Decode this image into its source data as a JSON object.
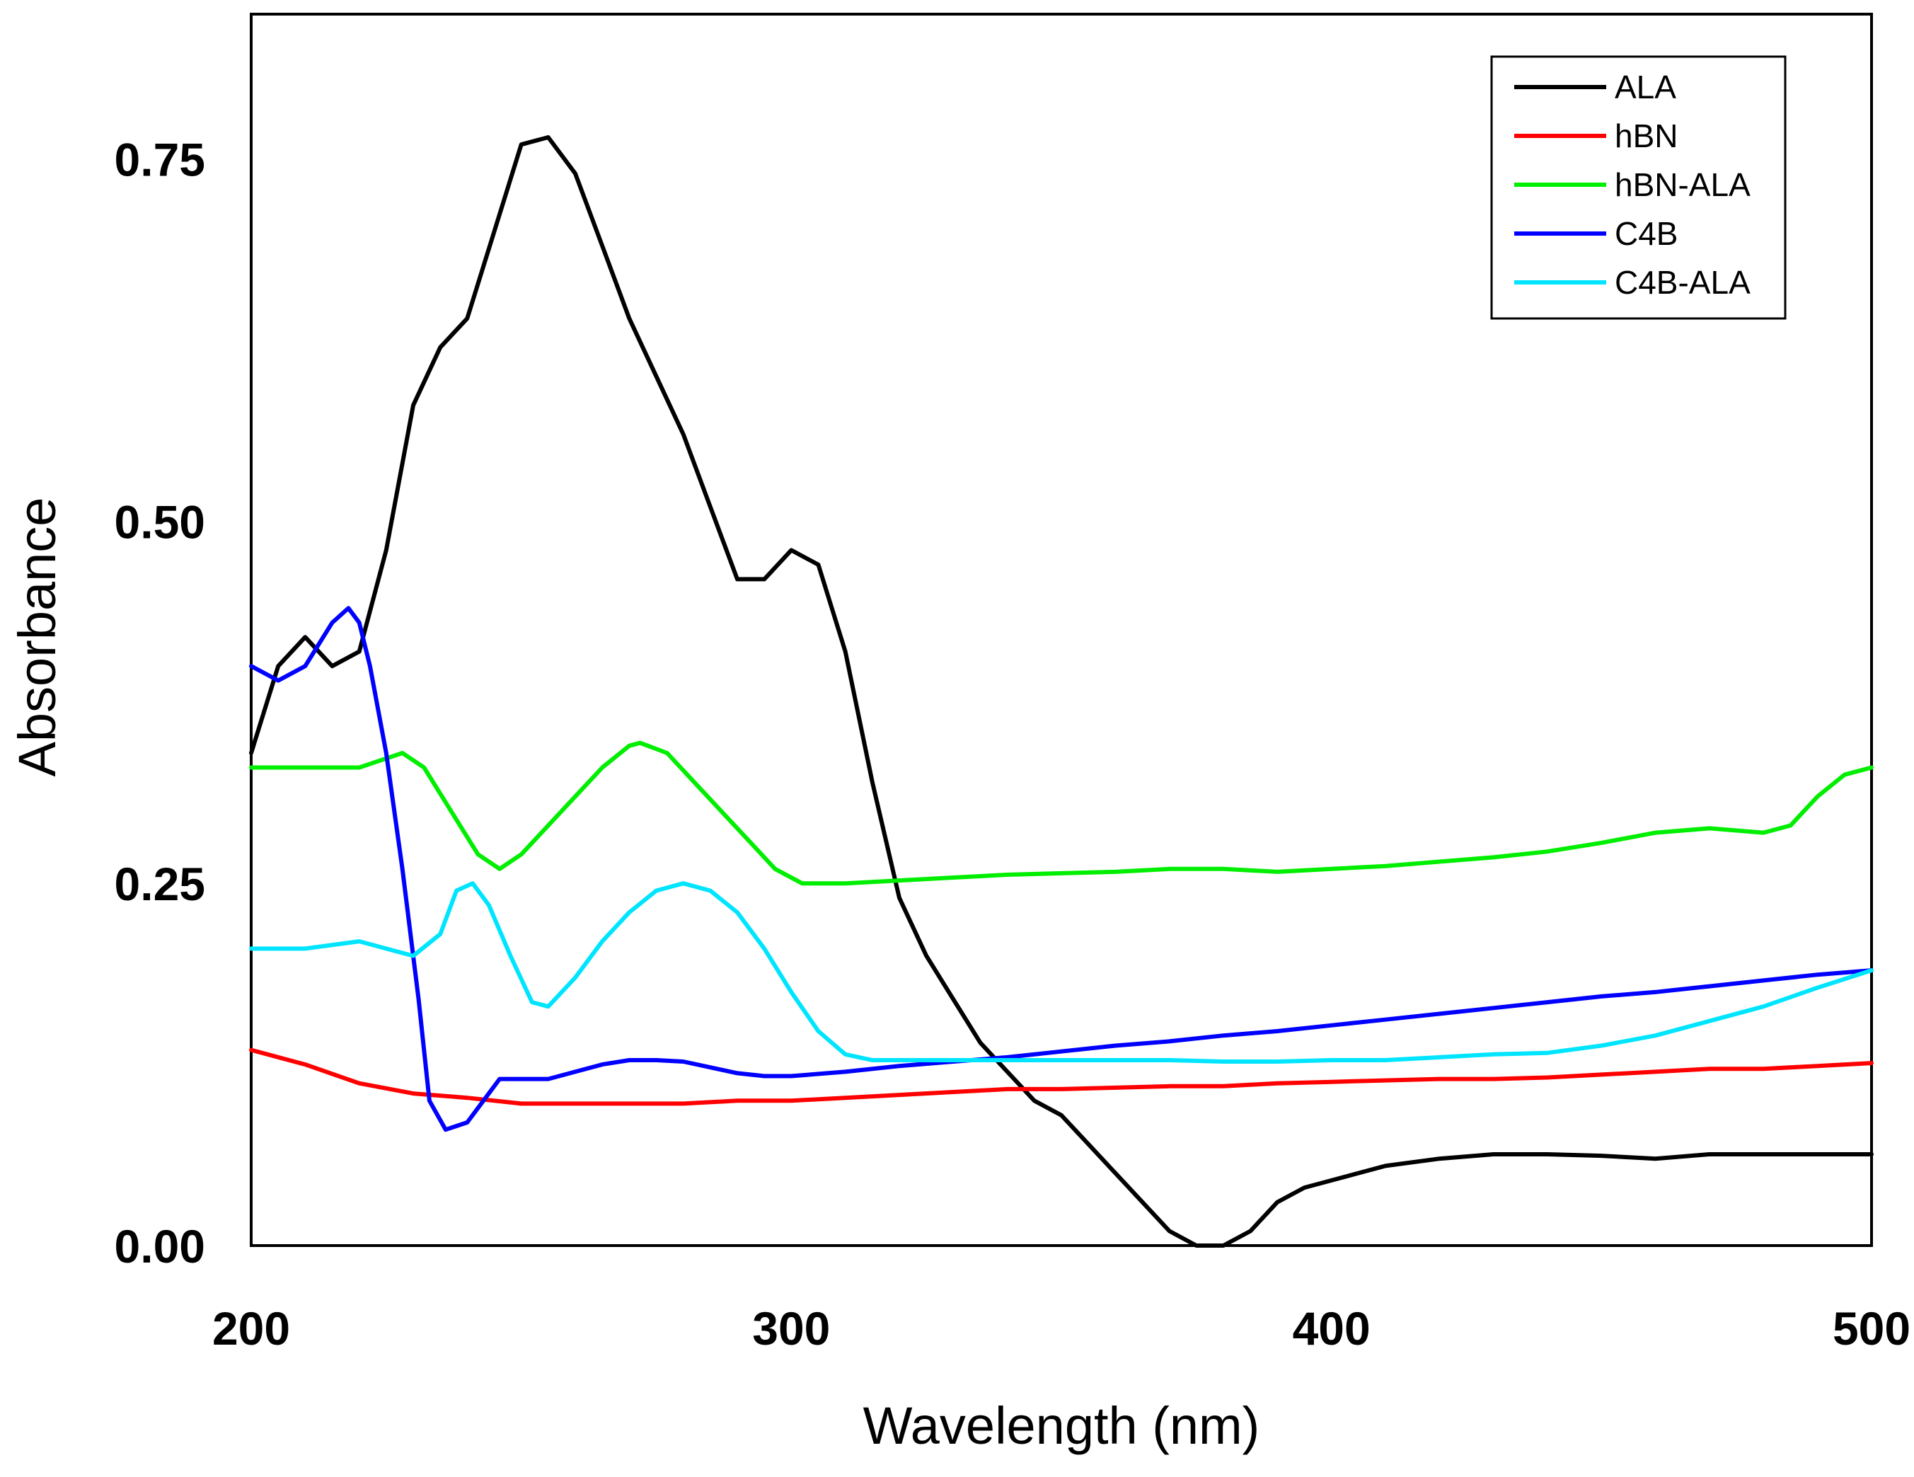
{
  "chart_data": {
    "type": "line",
    "title": "",
    "xlabel": "Wavelength (nm)",
    "ylabel": "Absorbance",
    "xlim": [
      200,
      500
    ],
    "ylim": [
      0,
      0.85
    ],
    "xticks": [
      200,
      300,
      400,
      500
    ],
    "xtick_labels": [
      "200",
      "300",
      "400",
      "500"
    ],
    "yticks": [
      0,
      0.25,
      0.5,
      0.75
    ],
    "ytick_labels": [
      "0.00",
      "0.25",
      "0.50",
      "0.75"
    ],
    "grid": false,
    "legend_position": "top-right",
    "series": [
      {
        "name": "ALA",
        "color": "#000000",
        "points": [
          [
            200,
            0.34
          ],
          [
            205,
            0.4
          ],
          [
            210,
            0.42
          ],
          [
            215,
            0.4
          ],
          [
            220,
            0.41
          ],
          [
            225,
            0.48
          ],
          [
            230,
            0.58
          ],
          [
            235,
            0.62
          ],
          [
            240,
            0.64
          ],
          [
            245,
            0.7
          ],
          [
            250,
            0.76
          ],
          [
            255,
            0.765
          ],
          [
            260,
            0.74
          ],
          [
            265,
            0.69
          ],
          [
            270,
            0.64
          ],
          [
            275,
            0.6
          ],
          [
            280,
            0.56
          ],
          [
            285,
            0.51
          ],
          [
            290,
            0.46
          ],
          [
            295,
            0.46
          ],
          [
            300,
            0.48
          ],
          [
            305,
            0.47
          ],
          [
            310,
            0.41
          ],
          [
            315,
            0.32
          ],
          [
            320,
            0.24
          ],
          [
            325,
            0.2
          ],
          [
            330,
            0.17
          ],
          [
            335,
            0.14
          ],
          [
            340,
            0.12
          ],
          [
            345,
            0.1
          ],
          [
            350,
            0.09
          ],
          [
            355,
            0.07
          ],
          [
            360,
            0.05
          ],
          [
            365,
            0.03
          ],
          [
            370,
            0.01
          ],
          [
            375,
            0.0
          ],
          [
            380,
            0.0
          ],
          [
            385,
            0.01
          ],
          [
            390,
            0.03
          ],
          [
            395,
            0.04
          ],
          [
            400,
            0.045
          ],
          [
            405,
            0.05
          ],
          [
            410,
            0.055
          ],
          [
            420,
            0.06
          ],
          [
            430,
            0.063
          ],
          [
            440,
            0.063
          ],
          [
            450,
            0.062
          ],
          [
            460,
            0.06
          ],
          [
            470,
            0.063
          ],
          [
            480,
            0.063
          ],
          [
            490,
            0.063
          ],
          [
            500,
            0.063
          ]
        ]
      },
      {
        "name": "hBN",
        "color": "#ff0000",
        "points": [
          [
            200,
            0.135
          ],
          [
            210,
            0.125
          ],
          [
            220,
            0.112
          ],
          [
            230,
            0.105
          ],
          [
            240,
            0.102
          ],
          [
            250,
            0.098
          ],
          [
            260,
            0.098
          ],
          [
            270,
            0.098
          ],
          [
            280,
            0.098
          ],
          [
            290,
            0.1
          ],
          [
            300,
            0.1
          ],
          [
            310,
            0.102
          ],
          [
            320,
            0.104
          ],
          [
            330,
            0.106
          ],
          [
            340,
            0.108
          ],
          [
            350,
            0.108
          ],
          [
            360,
            0.109
          ],
          [
            370,
            0.11
          ],
          [
            380,
            0.11
          ],
          [
            390,
            0.112
          ],
          [
            400,
            0.113
          ],
          [
            410,
            0.114
          ],
          [
            420,
            0.115
          ],
          [
            430,
            0.115
          ],
          [
            440,
            0.116
          ],
          [
            450,
            0.118
          ],
          [
            460,
            0.12
          ],
          [
            470,
            0.122
          ],
          [
            480,
            0.122
          ],
          [
            490,
            0.124
          ],
          [
            500,
            0.126
          ]
        ]
      },
      {
        "name": "hBN-ALA",
        "color": "#00ee00",
        "points": [
          [
            200,
            0.33
          ],
          [
            210,
            0.33
          ],
          [
            220,
            0.33
          ],
          [
            228,
            0.34
          ],
          [
            232,
            0.33
          ],
          [
            237,
            0.3
          ],
          [
            242,
            0.27
          ],
          [
            246,
            0.26
          ],
          [
            250,
            0.27
          ],
          [
            255,
            0.29
          ],
          [
            260,
            0.31
          ],
          [
            265,
            0.33
          ],
          [
            270,
            0.345
          ],
          [
            272,
            0.347
          ],
          [
            277,
            0.34
          ],
          [
            282,
            0.32
          ],
          [
            287,
            0.3
          ],
          [
            292,
            0.28
          ],
          [
            297,
            0.26
          ],
          [
            302,
            0.25
          ],
          [
            310,
            0.25
          ],
          [
            320,
            0.252
          ],
          [
            330,
            0.254
          ],
          [
            340,
            0.256
          ],
          [
            350,
            0.257
          ],
          [
            360,
            0.258
          ],
          [
            370,
            0.26
          ],
          [
            380,
            0.26
          ],
          [
            390,
            0.258
          ],
          [
            400,
            0.26
          ],
          [
            410,
            0.262
          ],
          [
            420,
            0.265
          ],
          [
            430,
            0.268
          ],
          [
            440,
            0.272
          ],
          [
            450,
            0.278
          ],
          [
            460,
            0.285
          ],
          [
            470,
            0.288
          ],
          [
            480,
            0.285
          ],
          [
            485,
            0.29
          ],
          [
            490,
            0.31
          ],
          [
            495,
            0.325
          ],
          [
            500,
            0.33
          ]
        ]
      },
      {
        "name": "C4B",
        "color": "#0000ff",
        "points": [
          [
            200,
            0.4
          ],
          [
            205,
            0.39
          ],
          [
            210,
            0.4
          ],
          [
            215,
            0.43
          ],
          [
            218,
            0.44
          ],
          [
            220,
            0.43
          ],
          [
            222,
            0.4
          ],
          [
            225,
            0.34
          ],
          [
            228,
            0.26
          ],
          [
            231,
            0.17
          ],
          [
            233,
            0.1
          ],
          [
            236,
            0.08
          ],
          [
            240,
            0.085
          ],
          [
            243,
            0.1
          ],
          [
            246,
            0.115
          ],
          [
            250,
            0.115
          ],
          [
            255,
            0.115
          ],
          [
            260,
            0.12
          ],
          [
            265,
            0.125
          ],
          [
            270,
            0.128
          ],
          [
            275,
            0.128
          ],
          [
            280,
            0.127
          ],
          [
            285,
            0.123
          ],
          [
            290,
            0.119
          ],
          [
            295,
            0.117
          ],
          [
            300,
            0.117
          ],
          [
            310,
            0.12
          ],
          [
            320,
            0.124
          ],
          [
            330,
            0.127
          ],
          [
            340,
            0.13
          ],
          [
            350,
            0.134
          ],
          [
            360,
            0.138
          ],
          [
            370,
            0.141
          ],
          [
            380,
            0.145
          ],
          [
            390,
            0.148
          ],
          [
            400,
            0.152
          ],
          [
            410,
            0.156
          ],
          [
            420,
            0.16
          ],
          [
            430,
            0.164
          ],
          [
            440,
            0.168
          ],
          [
            450,
            0.172
          ],
          [
            460,
            0.175
          ],
          [
            470,
            0.179
          ],
          [
            480,
            0.183
          ],
          [
            490,
            0.187
          ],
          [
            500,
            0.19
          ]
        ]
      },
      {
        "name": "C4B-ALA",
        "color": "#00e5ff",
        "points": [
          [
            200,
            0.205
          ],
          [
            210,
            0.205
          ],
          [
            220,
            0.21
          ],
          [
            225,
            0.205
          ],
          [
            230,
            0.2
          ],
          [
            235,
            0.215
          ],
          [
            238,
            0.245
          ],
          [
            241,
            0.25
          ],
          [
            244,
            0.235
          ],
          [
            248,
            0.2
          ],
          [
            252,
            0.168
          ],
          [
            255,
            0.165
          ],
          [
            260,
            0.185
          ],
          [
            265,
            0.21
          ],
          [
            270,
            0.23
          ],
          [
            275,
            0.245
          ],
          [
            280,
            0.25
          ],
          [
            285,
            0.245
          ],
          [
            290,
            0.23
          ],
          [
            295,
            0.205
          ],
          [
            300,
            0.175
          ],
          [
            305,
            0.148
          ],
          [
            310,
            0.132
          ],
          [
            315,
            0.128
          ],
          [
            320,
            0.128
          ],
          [
            330,
            0.128
          ],
          [
            340,
            0.128
          ],
          [
            350,
            0.128
          ],
          [
            360,
            0.128
          ],
          [
            370,
            0.128
          ],
          [
            380,
            0.127
          ],
          [
            390,
            0.127
          ],
          [
            400,
            0.128
          ],
          [
            410,
            0.128
          ],
          [
            420,
            0.13
          ],
          [
            430,
            0.132
          ],
          [
            440,
            0.133
          ],
          [
            450,
            0.138
          ],
          [
            460,
            0.145
          ],
          [
            470,
            0.155
          ],
          [
            480,
            0.165
          ],
          [
            490,
            0.178
          ],
          [
            500,
            0.19
          ]
        ]
      }
    ]
  }
}
